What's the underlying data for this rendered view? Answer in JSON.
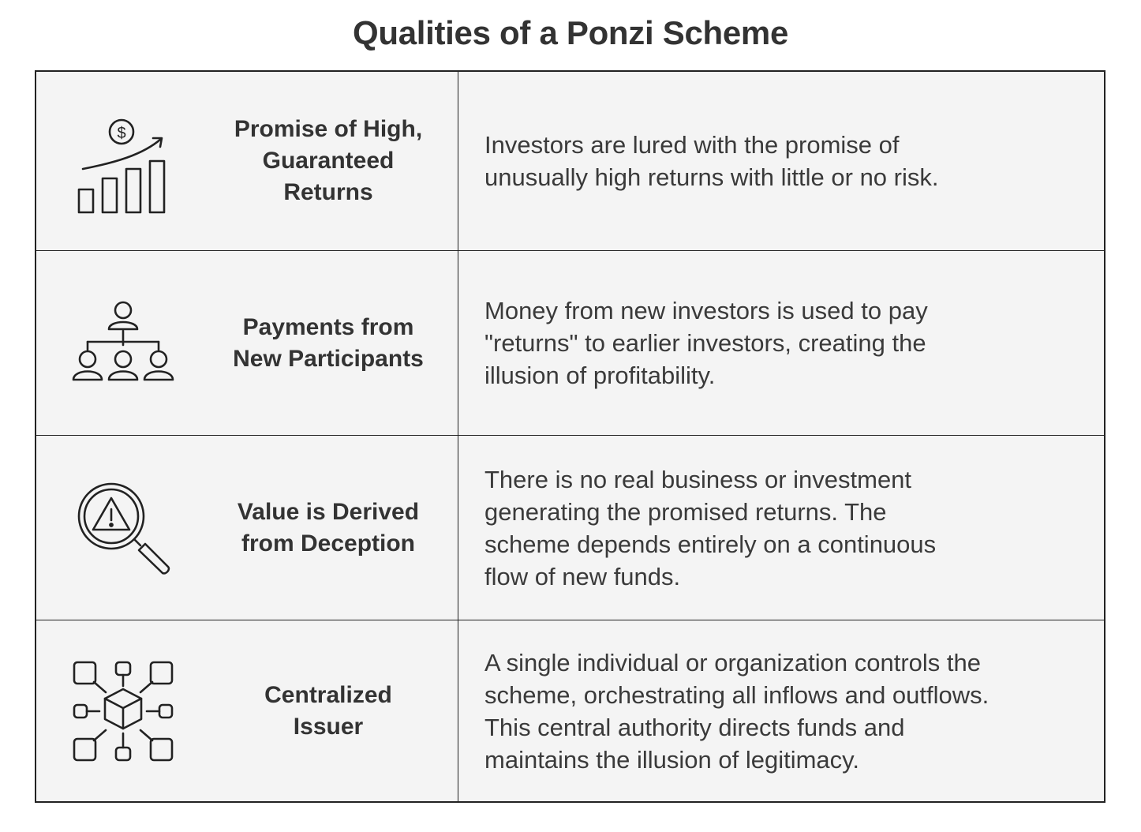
{
  "title": "Qualities of a Ponzi Scheme",
  "rows": [
    {
      "icon": "growth-chart-dollar-icon",
      "label": "Promise of High,\nGuaranteed\nReturns",
      "description": "Investors are lured with the promise of\nunusually high returns with little or no risk."
    },
    {
      "icon": "hierarchy-people-icon",
      "label": "Payments from\nNew Participants",
      "description": "Money from new investors is used to pay\n\"returns\" to earlier investors, creating the\nillusion of profitability."
    },
    {
      "icon": "magnifier-warning-icon",
      "label": "Value is Derived\nfrom Deception",
      "description": "There is no real business or investment\ngenerating the promised returns. The\nscheme depends entirely on a continuous\nflow of new funds."
    },
    {
      "icon": "central-cube-network-icon",
      "label": "Centralized\nIssuer",
      "description": "A single individual or organization controls the\nscheme, orchestrating all inflows and outflows.\nThis central authority  directs funds and\nmaintains the illusion of legitimacy."
    }
  ]
}
